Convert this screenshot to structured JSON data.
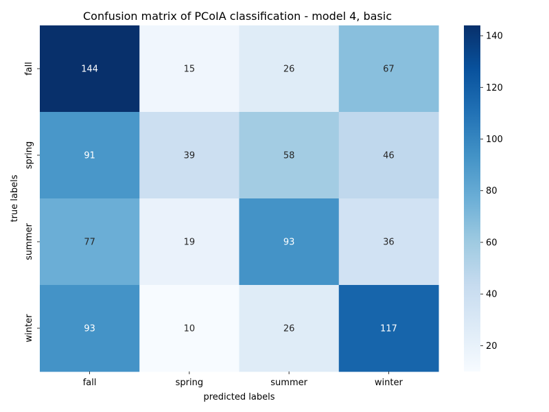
{
  "chart_data": {
    "type": "heatmap",
    "title": "Confusion matrix of PCoIA classification - model 4, basic",
    "xlabel": "predicted labels",
    "ylabel": "true labels",
    "x_categories": [
      "fall",
      "spring",
      "summer",
      "winter"
    ],
    "y_categories": [
      "fall",
      "spring",
      "summer",
      "winter"
    ],
    "values": [
      [
        144,
        15,
        26,
        67
      ],
      [
        91,
        39,
        58,
        46
      ],
      [
        77,
        19,
        93,
        36
      ],
      [
        93,
        10,
        26,
        117
      ]
    ],
    "colorbar": {
      "min": 10,
      "max": 144,
      "ticks": [
        20,
        40,
        60,
        80,
        100,
        120,
        140
      ],
      "colormap": "Blues"
    },
    "grid": false
  }
}
